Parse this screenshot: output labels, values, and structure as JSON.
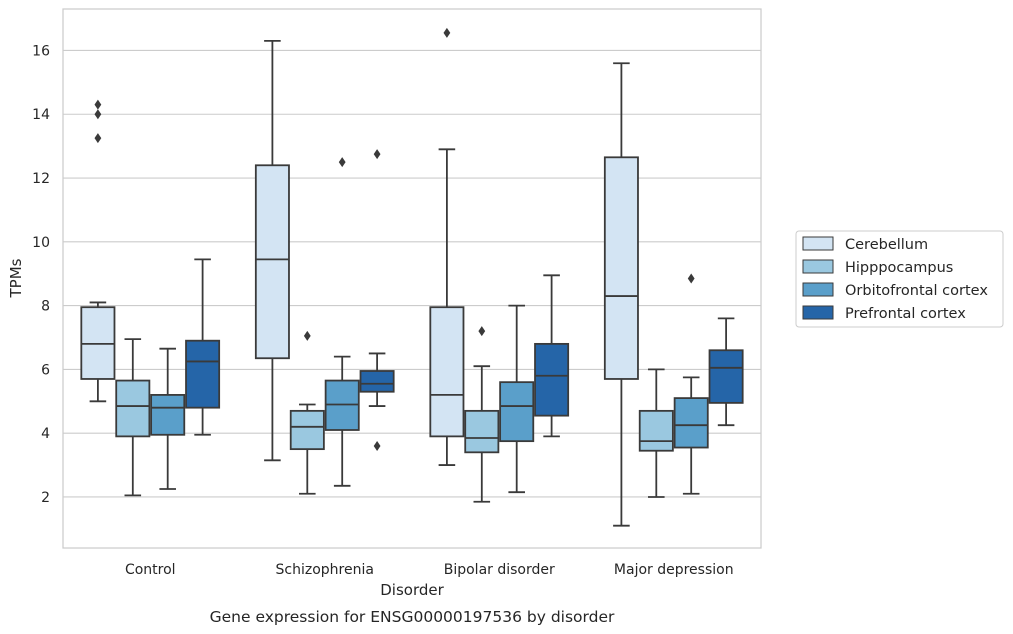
{
  "chart_data": {
    "type": "boxplot",
    "caption": "Gene expression for ENSG00000197536 by disorder",
    "xlabel": "Disorder",
    "ylabel": "TPMs",
    "ylim": [
      0.4,
      17.3
    ],
    "yticks": [
      2,
      4,
      6,
      8,
      10,
      12,
      14,
      16
    ],
    "grid": true,
    "legend_position": "right",
    "categories": [
      "Control",
      "Schizophrenia",
      "Bipolar disorder",
      "Major depression"
    ],
    "series": [
      {
        "name": "Cerebellum",
        "color": "#d3e4f3",
        "boxes": [
          {
            "whislo": 5.0,
            "q1": 5.7,
            "med": 6.8,
            "q3": 7.95,
            "whishi": 8.1,
            "fliers": [
              13.25,
              14.0,
              14.3
            ]
          },
          {
            "whislo": 3.15,
            "q1": 6.35,
            "med": 9.45,
            "q3": 12.4,
            "whishi": 16.3,
            "fliers": []
          },
          {
            "whislo": 3.0,
            "q1": 3.9,
            "med": 5.2,
            "q3": 7.95,
            "whishi": 12.9,
            "fliers": [
              16.55
            ]
          },
          {
            "whislo": 1.1,
            "q1": 5.7,
            "med": 8.3,
            "q3": 12.65,
            "whishi": 15.6,
            "fliers": []
          }
        ]
      },
      {
        "name": "Hipppocampus",
        "color": "#9ac8e0",
        "boxes": [
          {
            "whislo": 2.05,
            "q1": 3.9,
            "med": 4.85,
            "q3": 5.65,
            "whishi": 6.95,
            "fliers": []
          },
          {
            "whislo": 2.1,
            "q1": 3.5,
            "med": 4.2,
            "q3": 4.7,
            "whishi": 4.9,
            "fliers": [
              7.05
            ]
          },
          {
            "whislo": 1.85,
            "q1": 3.4,
            "med": 3.85,
            "q3": 4.7,
            "whishi": 6.1,
            "fliers": [
              7.2
            ]
          },
          {
            "whislo": 2.0,
            "q1": 3.45,
            "med": 3.75,
            "q3": 4.7,
            "whishi": 6.0,
            "fliers": []
          }
        ]
      },
      {
        "name": "Orbitofrontal cortex",
        "color": "#5a9fca",
        "boxes": [
          {
            "whislo": 2.25,
            "q1": 3.95,
            "med": 4.8,
            "q3": 5.2,
            "whishi": 6.65,
            "fliers": []
          },
          {
            "whislo": 2.35,
            "q1": 4.1,
            "med": 4.9,
            "q3": 5.65,
            "whishi": 6.4,
            "fliers": [
              12.5
            ]
          },
          {
            "whislo": 2.15,
            "q1": 3.75,
            "med": 4.85,
            "q3": 5.6,
            "whishi": 8.0,
            "fliers": []
          },
          {
            "whislo": 2.1,
            "q1": 3.55,
            "med": 4.25,
            "q3": 5.1,
            "whishi": 5.75,
            "fliers": [
              8.85
            ]
          }
        ]
      },
      {
        "name": "Prefrontal cortex",
        "color": "#2565a8",
        "boxes": [
          {
            "whislo": 3.95,
            "q1": 4.8,
            "med": 6.25,
            "q3": 6.9,
            "whishi": 9.45,
            "fliers": []
          },
          {
            "whislo": 4.85,
            "q1": 5.3,
            "med": 5.55,
            "q3": 5.95,
            "whishi": 6.5,
            "fliers": [
              3.6,
              12.75
            ]
          },
          {
            "whislo": 3.9,
            "q1": 4.55,
            "med": 5.8,
            "q3": 6.8,
            "whishi": 8.95,
            "fliers": []
          },
          {
            "whislo": 4.25,
            "q1": 4.95,
            "med": 6.05,
            "q3": 6.6,
            "whishi": 7.6,
            "fliers": []
          }
        ]
      }
    ]
  }
}
